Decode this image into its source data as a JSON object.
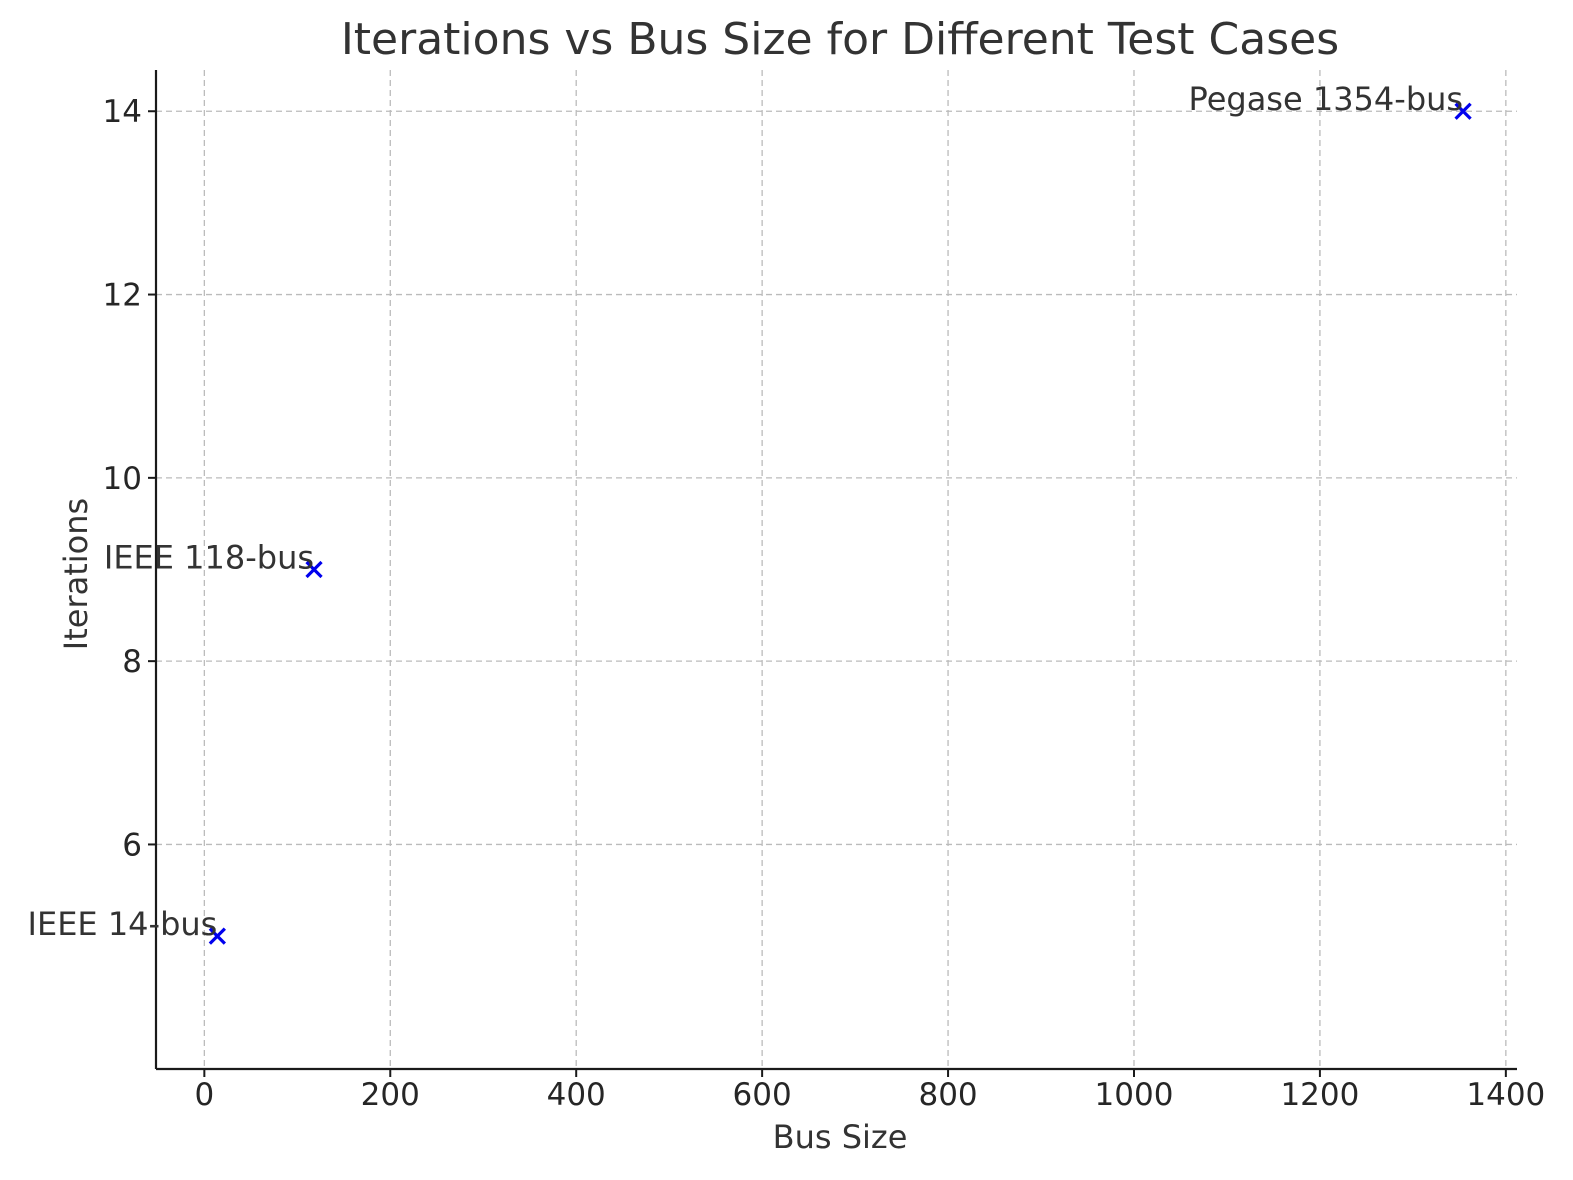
{
  "chart_data": {
    "type": "scatter",
    "title": "Iterations vs Bus Size for Different Test Cases",
    "xlabel": "Bus Size",
    "ylabel": "Iterations",
    "xlim": [
      -52,
      1412
    ],
    "ylim": [
      3.55,
      14.45
    ],
    "xticks": [
      0,
      200,
      400,
      600,
      800,
      1000,
      1200,
      1400
    ],
    "yticks": [
      6,
      8,
      10,
      12,
      14
    ],
    "grid": true,
    "marker": "x",
    "marker_color": "#0000ee",
    "points": [
      {
        "x": 14,
        "y": 5,
        "label": "IEEE 14-bus"
      },
      {
        "x": 118,
        "y": 9,
        "label": "IEEE 118-bus"
      },
      {
        "x": 1354,
        "y": 14,
        "label": "Pegase 1354-bus"
      }
    ]
  }
}
